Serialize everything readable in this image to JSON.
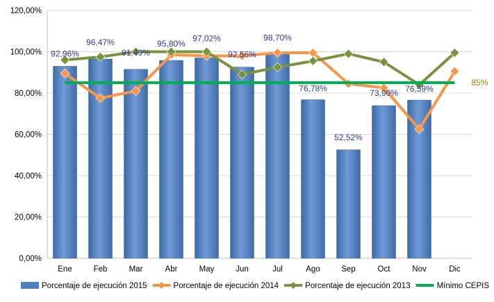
{
  "chart_data": {
    "type": "bar",
    "categories": [
      "Ene",
      "Feb",
      "Mar",
      "Abr",
      "May",
      "Jun",
      "Jul",
      "Ago",
      "Sep",
      "Oct",
      "Nov",
      "Dic"
    ],
    "ylim": [
      0,
      120
    ],
    "yticks": [
      "0,00%",
      "20,00%",
      "40,00%",
      "60,00%",
      "80,00%",
      "100,00%",
      "120,00%"
    ],
    "grid": true,
    "legend_position": "bottom",
    "series": [
      {
        "name": "Porcentaje de ejecución 2015",
        "type": "bar",
        "color": "#4f81bd",
        "values": [
          92.96,
          96.47,
          91.49,
          95.8,
          97.02,
          92.56,
          98.7,
          76.78,
          52.52,
          73.9,
          76.59,
          null
        ],
        "labels": [
          "92,96%",
          "96,47%",
          "91,49%",
          "95,80%",
          "97,02%",
          "92,56%",
          "98,70%",
          "76,78%",
          "52,52%",
          "73,90%",
          "76,59%",
          ""
        ]
      },
      {
        "name": "Porcentaje de ejecución 2014",
        "type": "line",
        "color": "#f79646",
        "values": [
          89.5,
          77.5,
          81.0,
          98.5,
          98.0,
          98.0,
          99.5,
          99.5,
          84.5,
          82.5,
          62.5,
          90.5
        ]
      },
      {
        "name": "Porcentaje de ejecución 2013",
        "type": "line",
        "color": "#77933c",
        "values": [
          96.0,
          97.5,
          100.0,
          100.0,
          100.0,
          89.0,
          92.5,
          95.5,
          99.0,
          95.0,
          84.0,
          99.5
        ]
      },
      {
        "name": "Mínimo CEPIS",
        "type": "reference-line",
        "color": "#00b050",
        "value": 85,
        "label": "85%"
      }
    ]
  }
}
